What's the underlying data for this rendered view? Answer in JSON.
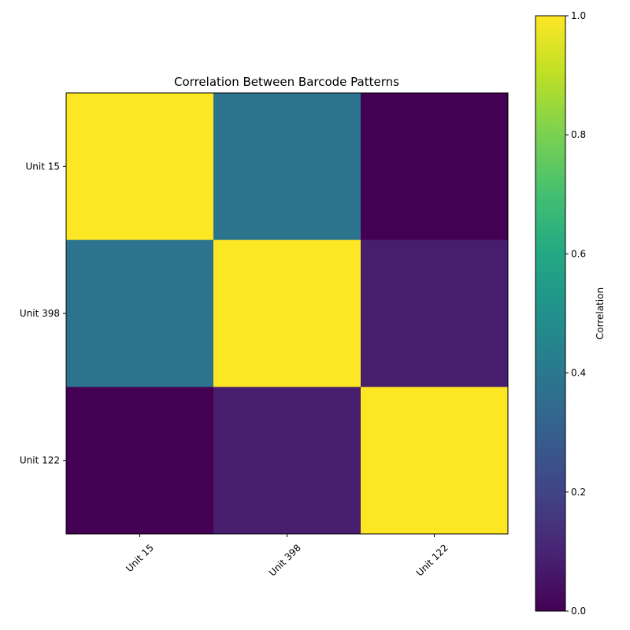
{
  "chart_data": {
    "type": "heatmap",
    "title": "Correlation Between Barcode Patterns",
    "xlabel": "",
    "ylabel": "",
    "x_categories": [
      "Unit 15",
      "Unit 398",
      "Unit 122"
    ],
    "y_categories": [
      "Unit 15",
      "Unit 398",
      "Unit 122"
    ],
    "values": [
      [
        1.0,
        0.38,
        0.0
      ],
      [
        0.38,
        1.0,
        0.08
      ],
      [
        0.0,
        0.08,
        1.0
      ]
    ],
    "colormap": "viridis",
    "colorbar": {
      "label": "Correlation",
      "range": [
        0.0,
        1.0
      ],
      "ticks": [
        "0.0",
        "0.2",
        "0.4",
        "0.6",
        "0.8",
        "1.0"
      ]
    },
    "grid": false
  }
}
